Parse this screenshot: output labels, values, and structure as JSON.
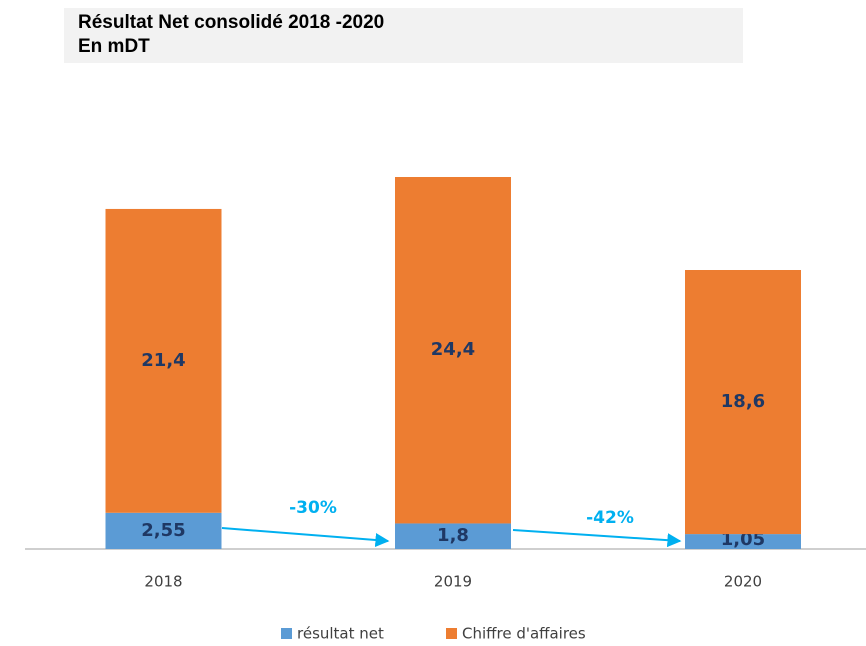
{
  "chart_data": {
    "type": "stacked_bar",
    "title": "Résultat Net consolidé 2018 -2020",
    "subtitle": "En mDT",
    "categories": [
      "2018",
      "2019",
      "2020"
    ],
    "series": [
      {
        "name": "résultat net",
        "color": "#5b9bd5",
        "values": [
          2.55,
          1.8,
          1.05
        ],
        "value_labels": [
          "2,55",
          "1,8",
          "1,05"
        ]
      },
      {
        "name": "Chiffre d'affaires",
        "color": "#ed7d31",
        "values": [
          21.4,
          24.4,
          18.6
        ],
        "value_labels": [
          "21,4",
          "24,4",
          "18,6"
        ]
      }
    ],
    "annotations": [
      {
        "text": "-30%"
      },
      {
        "text": "-42%"
      }
    ]
  }
}
